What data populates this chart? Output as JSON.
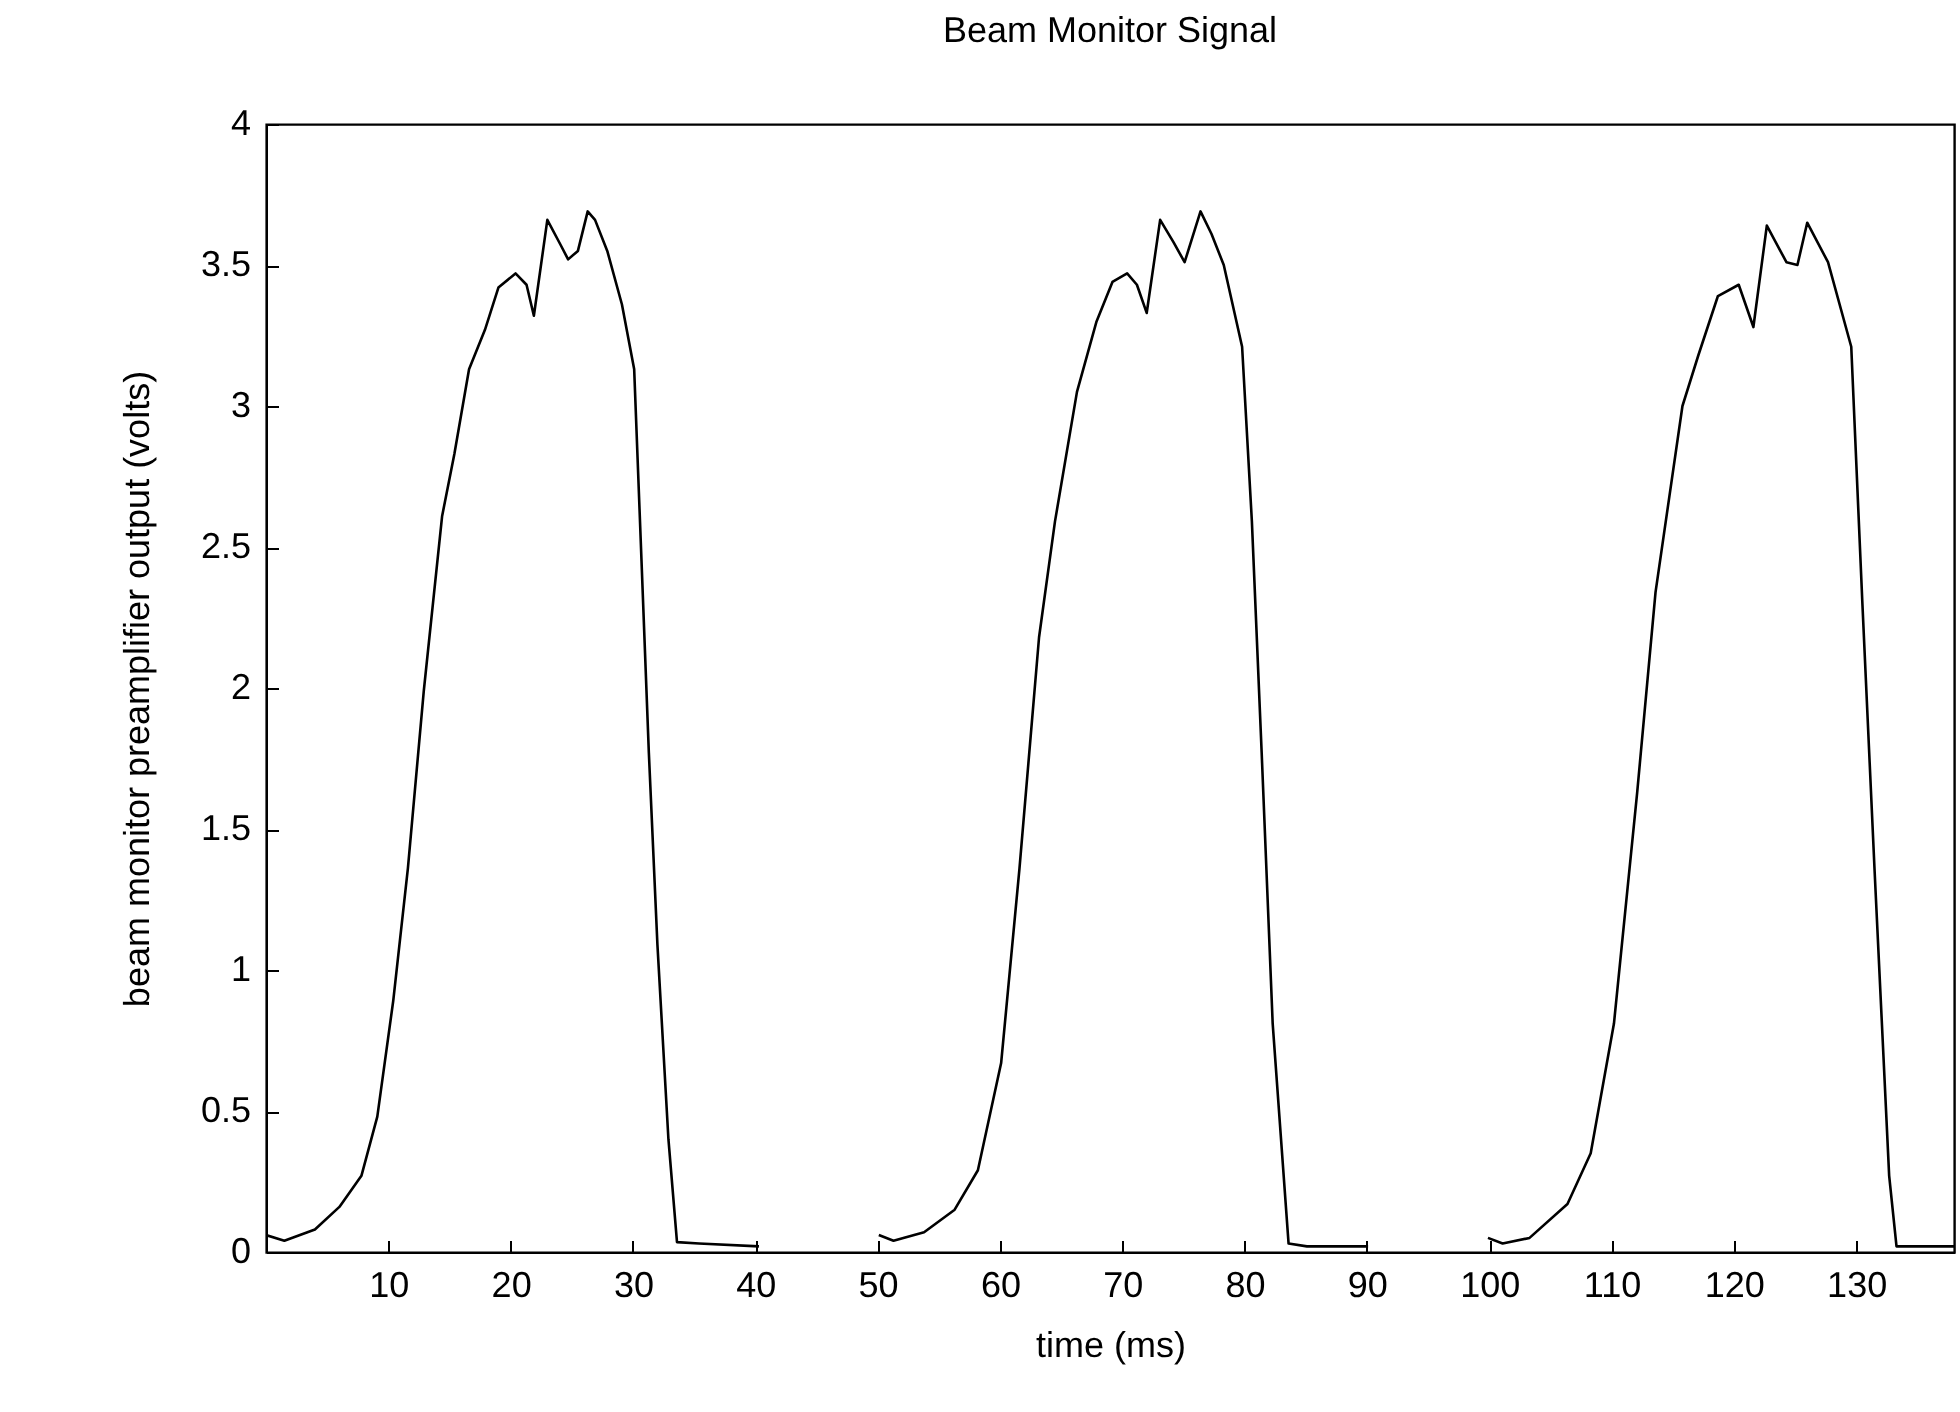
{
  "chart_data": {
    "type": "line",
    "title": "Beam Monitor Signal",
    "xlabel": "time (ms)",
    "ylabel": "beam monitor preamplifier output (volts)",
    "xlim": [
      0,
      138
    ],
    "xticks": [
      10,
      20,
      30,
      40,
      50,
      60,
      70,
      80,
      90,
      100,
      110,
      120,
      130
    ],
    "ylim": [
      0,
      4
    ],
    "yticks": [
      0,
      0.5,
      1,
      1.5,
      2,
      2.5,
      3,
      3.5,
      4
    ],
    "grid": false,
    "marker": "none",
    "line_style": "solid",
    "series": [
      {
        "color": "#000000",
        "x": [
          0,
          1.5,
          4,
          6,
          7.8,
          9.1,
          10.4,
          11.6,
          12.9,
          14.4,
          15.4,
          16.6,
          17.9,
          19,
          20.4,
          21.3,
          21.9,
          23,
          24.1,
          24.7,
          25.5,
          26.3,
          26.9,
          27.9,
          29.1,
          30.1,
          30.7,
          31.3,
          32,
          32.9,
          33.6,
          35.4,
          40.3,
          45,
          50.1,
          51.3,
          53.8,
          56.3,
          58.2,
          60.1,
          61.6,
          63.2,
          64.5,
          66.3,
          67.9,
          69.2,
          70.4,
          71.2,
          72,
          73.1,
          74.2,
          75.1,
          76.4,
          77.3,
          78.3,
          79.8,
          80.6,
          81.4,
          82.3,
          83.6,
          85.1,
          90.1,
          95,
          99.9,
          101.1,
          103.3,
          106.4,
          108.3,
          110.2,
          112.1,
          113.6,
          115.8,
          117.1,
          118.7,
          120.4,
          121.6,
          122.7,
          124.3,
          125.2,
          126,
          127.7,
          129.6,
          130.5,
          131.5,
          132.7,
          133.3,
          138
        ],
        "values": [
          0.06,
          0.04,
          0.08,
          0.16,
          0.27,
          0.48,
          0.89,
          1.36,
          1.99,
          2.61,
          2.83,
          3.13,
          3.27,
          3.42,
          3.47,
          3.43,
          3.32,
          3.66,
          3.57,
          3.52,
          3.55,
          3.69,
          3.66,
          3.55,
          3.36,
          3.13,
          2.45,
          1.77,
          1.09,
          0.4,
          0.035,
          0.03,
          0.02,
          null,
          0.06,
          0.04,
          0.07,
          0.15,
          0.29,
          0.67,
          1.36,
          2.18,
          2.59,
          3.05,
          3.3,
          3.44,
          3.47,
          3.43,
          3.33,
          3.66,
          3.58,
          3.51,
          3.69,
          3.61,
          3.5,
          3.21,
          2.59,
          1.77,
          0.81,
          0.03,
          0.02,
          0.02,
          null,
          0.05,
          0.03,
          0.05,
          0.17,
          0.35,
          0.81,
          1.63,
          2.34,
          3,
          3.18,
          3.39,
          3.43,
          3.28,
          3.64,
          3.51,
          3.5,
          3.65,
          3.51,
          3.21,
          2.31,
          1.36,
          0.27,
          0.02,
          0.02
        ]
      }
    ]
  }
}
